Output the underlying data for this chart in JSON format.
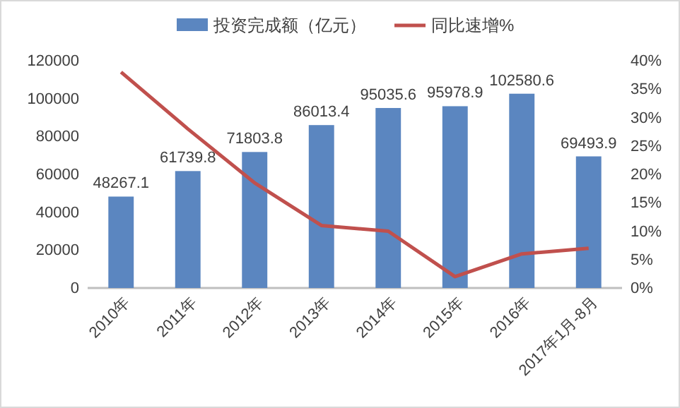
{
  "chart_data": {
    "type": "bar",
    "categories": [
      "2010年",
      "2011年",
      "2012年",
      "2013年",
      "2014年",
      "2015年",
      "2016年",
      "2017年1月-8月"
    ],
    "series": [
      {
        "name": "投资完成额（亿元）",
        "color": "#5b86c0",
        "values": [
          48267.1,
          61739.8,
          71803.8,
          86013.4,
          95035.6,
          95978.9,
          102580.6,
          69493.9
        ],
        "value_labels": [
          "48267.1",
          "61739.8",
          "71803.8",
          "86013.4",
          "95035.6",
          "95978.9",
          "102580.6",
          "69493.9"
        ]
      },
      {
        "name": "同比速增%",
        "type": "line",
        "axis": "y2",
        "color": "#c0504d",
        "values": [
          38,
          28,
          18.5,
          11,
          10,
          2,
          6,
          7
        ]
      }
    ],
    "ylim": [
      0,
      120000
    ],
    "yticks": [
      0,
      20000,
      40000,
      60000,
      80000,
      100000,
      120000
    ],
    "y2lim": [
      0,
      40
    ],
    "y2ticks": [
      {
        "value": 0,
        "label": "0%"
      },
      {
        "value": 5,
        "label": "5%"
      },
      {
        "value": 10,
        "label": "10%"
      },
      {
        "value": 15,
        "label": "15%"
      },
      {
        "value": 20,
        "label": "20%"
      },
      {
        "value": 25,
        "label": "25%"
      },
      {
        "value": 30,
        "label": "30%"
      },
      {
        "value": 35,
        "label": "35%"
      },
      {
        "value": 40,
        "label": "40%"
      }
    ],
    "legend": "top",
    "marker": "none",
    "line_style": "solid"
  }
}
